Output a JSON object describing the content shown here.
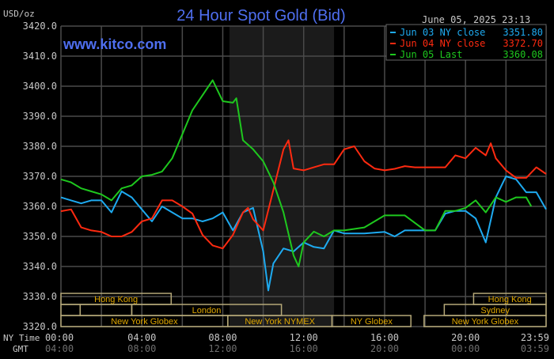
{
  "chart_data": {
    "type": "line",
    "title": "24 Hour Spot Gold (Bid)",
    "ylabel": "USD/oz",
    "watermark": "www.kitco.com",
    "timestamp": "June 05, 2025 23:13",
    "ylim": [
      3320,
      3420
    ],
    "xlim": [
      0,
      23.983
    ],
    "yticks": [
      3320,
      3330,
      3340,
      3350,
      3360,
      3370,
      3380,
      3390,
      3400,
      3410,
      3420
    ],
    "ytick_labels": [
      "3320.0",
      "3330.0",
      "3340.0",
      "3350.0",
      "3360.0",
      "3370.0",
      "3380.0",
      "3390.0",
      "3400.0",
      "3410.0",
      "3420.0"
    ],
    "x_row_labels": {
      "ny": "NY Time",
      "gmt": "GMT"
    },
    "xticks": [
      0,
      4,
      8,
      12,
      16,
      20,
      23.983
    ],
    "xtick_labels_ny": [
      "00:00",
      "04:00",
      "08:00",
      "12:00",
      "16:00",
      "20:00",
      "23:59"
    ],
    "xtick_labels_gmt": [
      "04:00",
      "08:00",
      "12:00",
      "16:00",
      "20:00",
      "00:00",
      "03:59"
    ],
    "grid": true,
    "legend_position": "top-right",
    "shaded_range": [
      8.33,
      13.5
    ],
    "series": [
      {
        "name": "Jun 03 NY close 3351.80",
        "label": "Jun 03 NY close",
        "value": "3351.80",
        "color": "#1eaaf0",
        "x": [
          0,
          0.5,
          1,
          1.5,
          2,
          2.5,
          3,
          3.5,
          4,
          4.5,
          5,
          5.5,
          6,
          6.5,
          7,
          7.5,
          8,
          8.5,
          9,
          9.5,
          10,
          10.25,
          10.5,
          11,
          11.5,
          12,
          12.5,
          13,
          13.5,
          14,
          15,
          16,
          16.5,
          17,
          17.5,
          18,
          18.5,
          19,
          19.5,
          20,
          20.5,
          21,
          21.5,
          22,
          22.5,
          23,
          23.5,
          23.983
        ],
        "y": [
          3363,
          3362,
          3361,
          3362,
          3362,
          3358,
          3365,
          3363,
          3359,
          3355,
          3360,
          3358,
          3356,
          3356,
          3355,
          3356,
          3358,
          3352,
          3358,
          3359.5,
          3345,
          3332,
          3341,
          3346,
          3345,
          3348,
          3346.5,
          3346,
          3352,
          3351,
          3351,
          3351.5,
          3350,
          3352,
          3352,
          3352,
          3352,
          3357.6,
          3358.5,
          3358.5,
          3356,
          3348,
          3363,
          3370,
          3369,
          3364.7,
          3364.7,
          3359
        ]
      },
      {
        "name": "Jun 04 NY close 3372.70",
        "label": "Jun 04 NY close",
        "value": "3372.70",
        "color": "#ff2a10",
        "x": [
          0,
          0.5,
          1,
          1.5,
          2,
          2.5,
          3,
          3.5,
          4,
          4.5,
          5,
          5.5,
          6,
          6.5,
          7,
          7.5,
          8,
          8.5,
          9,
          9.25,
          9.5,
          10,
          10.5,
          11,
          11.25,
          11.5,
          12,
          12.5,
          13,
          13.5,
          14,
          14.5,
          15,
          15.5,
          16,
          16.5,
          17,
          17.5,
          18,
          18.5,
          19,
          19.5,
          20,
          20.5,
          21,
          21.25,
          21.5,
          22,
          22.5,
          23,
          23.5,
          23.983
        ],
        "y": [
          3358.4,
          3359,
          3353,
          3352,
          3351.5,
          3350,
          3350,
          3351.5,
          3355,
          3356,
          3362,
          3362,
          3360,
          3357.6,
          3350.5,
          3347,
          3346,
          3350.5,
          3358,
          3359.5,
          3355.7,
          3352,
          3365.5,
          3379,
          3382,
          3372.6,
          3372,
          3373,
          3374,
          3374,
          3379,
          3380,
          3375,
          3372.6,
          3372,
          3372.5,
          3373.4,
          3373,
          3373,
          3373,
          3373,
          3377,
          3376,
          3379.5,
          3377,
          3381,
          3376,
          3372,
          3369.5,
          3369.5,
          3373,
          3370.8
        ]
      },
      {
        "name": "Jun 05 Last 3360.08",
        "label": "Jun 05 Last",
        "value": "3360.08",
        "color": "#1ec81e",
        "x": [
          0,
          0.5,
          1,
          1.5,
          2,
          2.5,
          3,
          3.5,
          4,
          4.5,
          5,
          5.5,
          6,
          6.5,
          7,
          7.5,
          8,
          8.5,
          8.67,
          9,
          9.5,
          10,
          10.5,
          11,
          11.5,
          11.75,
          12,
          12.5,
          13,
          13.5,
          14,
          15,
          16,
          17,
          18,
          18.5,
          19,
          19.5,
          20,
          20.5,
          21,
          21.5,
          22,
          22.5,
          23,
          23.25
        ],
        "y": [
          3369,
          3368,
          3366,
          3365,
          3364,
          3362,
          3366,
          3367,
          3370,
          3370.5,
          3371.6,
          3376,
          3384,
          3392,
          3397,
          3402,
          3395,
          3394.5,
          3396,
          3382,
          3379,
          3375,
          3368,
          3358,
          3343.7,
          3340,
          3348,
          3351.6,
          3350,
          3352,
          3352,
          3353,
          3357,
          3357,
          3352,
          3352,
          3358.5,
          3358.5,
          3359.5,
          3362,
          3358,
          3363,
          3361.5,
          3363,
          3363,
          3360
        ]
      }
    ],
    "sessions": [
      {
        "label": "Hong Kong",
        "row": 0,
        "start": 0,
        "end": 5.45
      },
      {
        "label": "Hong Kong",
        "row": 0,
        "start": 20.4,
        "end": 24
      },
      {
        "label": "",
        "row": 1,
        "start": 0,
        "end": 0.95
      },
      {
        "label": "",
        "row": 1,
        "start": 0.95,
        "end": 3.5
      },
      {
        "label": "London",
        "row": 1,
        "start": 3.5,
        "end": 10.9
      },
      {
        "label": "Sydney",
        "row": 1,
        "start": 18.95,
        "end": 24
      },
      {
        "label": "New York Globex",
        "row": 2,
        "start": 0,
        "end": 8.25
      },
      {
        "label": "New York NYMEX",
        "row": 2,
        "start": 8.25,
        "end": 13.4
      },
      {
        "label": "NY Globex",
        "row": 2,
        "start": 13.4,
        "end": 17.3
      },
      {
        "label": "New York Globex",
        "row": 2,
        "start": 17.95,
        "end": 24
      }
    ]
  }
}
